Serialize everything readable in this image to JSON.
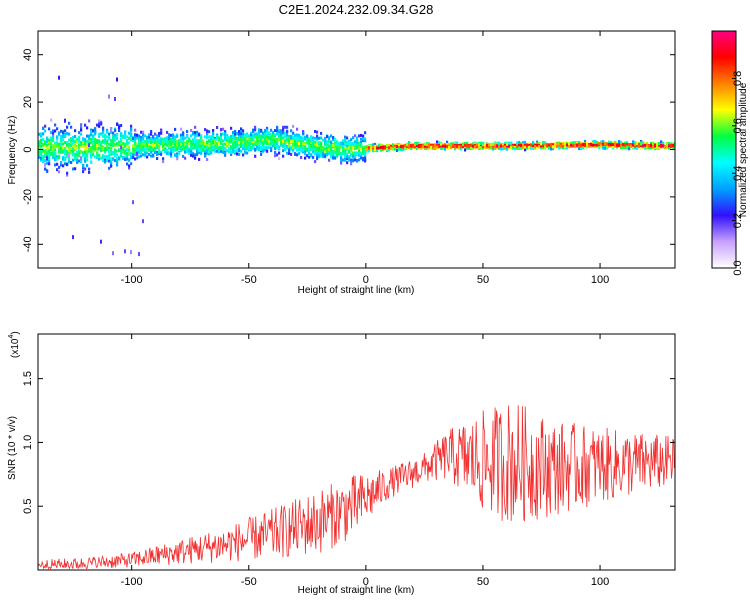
{
  "figure": {
    "title": "C2E1.2024.232.09.34.G28"
  },
  "chart_data": [
    {
      "type": "heatmap",
      "xlabel": "Height of straight line (km)",
      "ylabel": "Frequency (Hz)",
      "xlim": [
        -140,
        132
      ],
      "ylim": [
        -50,
        50
      ],
      "xticks": [
        -100,
        -50,
        0,
        50,
        100
      ],
      "yticks": [
        -40,
        -20,
        0,
        20,
        40
      ],
      "colorbar": {
        "label": "Normalized spectral amplitude",
        "range": [
          0,
          1
        ],
        "ticks": [
          0.0,
          0.2,
          0.4,
          0.6,
          0.8
        ],
        "tick_labels": [
          "0.0",
          "0.2",
          "0.4",
          "0.6",
          "0.8"
        ],
        "colormap": "rainbow",
        "colors": [
          "#ffffff",
          "#c8a0ff",
          "#3010ff",
          "#00a0ff",
          "#00ffff",
          "#00ff40",
          "#ffff00",
          "#ff8000",
          "#ff0000",
          "#ff0080"
        ]
      },
      "ridge": [
        {
          "x": -140,
          "f": 0.5
        },
        {
          "x": -100,
          "f": 1.5
        },
        {
          "x": -60,
          "f": 2.5
        },
        {
          "x": -40,
          "f": 4
        },
        {
          "x": -20,
          "f": 1
        },
        {
          "x": -10,
          "f": 0
        },
        {
          "x": 0,
          "f": 0.5
        },
        {
          "x": 20,
          "f": 1.5
        },
        {
          "x": 60,
          "f": 1.5
        },
        {
          "x": 100,
          "f": 2
        },
        {
          "x": 132,
          "f": 1.5
        }
      ]
    },
    {
      "type": "line",
      "xlabel": "Height of straight line (km)",
      "ylabel": "SNR (10 * v/v)",
      "scale_label": "(x10",
      "scale_exponent": "4",
      "xlim": [
        -140,
        132
      ],
      "ylim": [
        0,
        1.85
      ],
      "xticks": [
        -100,
        -50,
        0,
        50,
        100
      ],
      "yticks": [
        0.5,
        1.0,
        1.5
      ],
      "ytick_labels": [
        "0.5",
        "1.0",
        "1.5"
      ],
      "line_color": "#f03030",
      "series": [
        {
          "envelope": [
            {
              "x": -140,
              "mean": 0.04,
              "spread": 0.04
            },
            {
              "x": -120,
              "mean": 0.05,
              "spread": 0.05
            },
            {
              "x": -100,
              "mean": 0.08,
              "spread": 0.06
            },
            {
              "x": -80,
              "mean": 0.14,
              "spread": 0.1
            },
            {
              "x": -60,
              "mean": 0.2,
              "spread": 0.14
            },
            {
              "x": -40,
              "mean": 0.28,
              "spread": 0.2
            },
            {
              "x": -20,
              "mean": 0.38,
              "spread": 0.26
            },
            {
              "x": -5,
              "mean": 0.5,
              "spread": 0.25
            },
            {
              "x": 10,
              "mean": 0.68,
              "spread": 0.12
            },
            {
              "x": 25,
              "mean": 0.8,
              "spread": 0.12
            },
            {
              "x": 35,
              "mean": 0.9,
              "spread": 0.2
            },
            {
              "x": 50,
              "mean": 0.85,
              "spread": 0.4
            },
            {
              "x": 62,
              "mean": 0.85,
              "spread": 0.5
            },
            {
              "x": 80,
              "mean": 0.8,
              "spread": 0.38
            },
            {
              "x": 100,
              "mean": 0.82,
              "spread": 0.3
            },
            {
              "x": 132,
              "mean": 0.85,
              "spread": 0.2
            }
          ]
        }
      ]
    }
  ]
}
